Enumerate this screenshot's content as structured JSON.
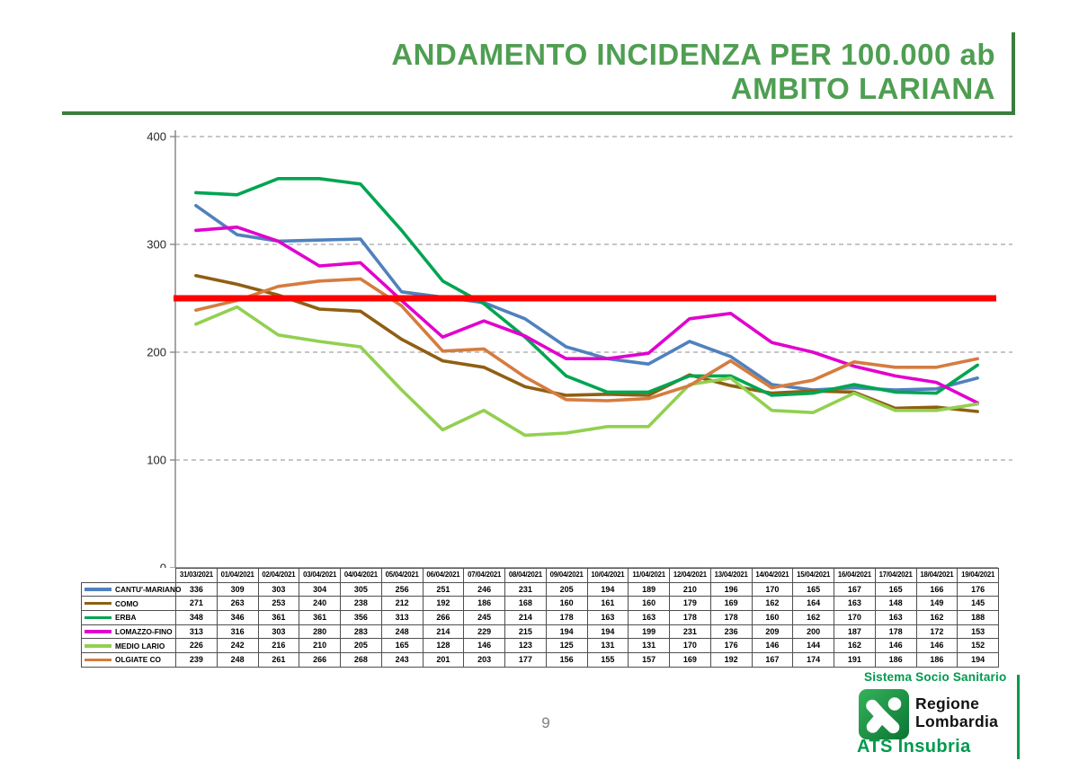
{
  "header": {
    "title_line1": "ANDAMENTO INCIDENZA PER 100.000 ab",
    "title_line2": "AMBITO LARIANA"
  },
  "chart_data": {
    "type": "line",
    "title": "ANDAMENTO INCIDENZA PER 100.000 ab - AMBITO LARIANA",
    "xlabel": "",
    "ylabel": "",
    "ylim": [
      0,
      400
    ],
    "y_ticks": [
      0,
      100,
      200,
      300,
      400
    ],
    "grid": "horizontal-dashed",
    "legend_position": "left-of-data-table",
    "threshold_line": {
      "value": 250,
      "color": "#FE0000"
    },
    "categories": [
      "31/03/2021",
      "01/04/2021",
      "02/04/2021",
      "03/04/2021",
      "04/04/2021",
      "05/04/2021",
      "06/04/2021",
      "07/04/2021",
      "08/04/2021",
      "09/04/2021",
      "10/04/2021",
      "11/04/2021",
      "12/04/2021",
      "13/04/2021",
      "14/04/2021",
      "15/04/2021",
      "16/04/2021",
      "17/04/2021",
      "18/04/2021",
      "19/04/2021"
    ],
    "series": [
      {
        "name": "CANTU'-MARIANO",
        "color": "#4F81BD",
        "values": [
          336,
          309,
          303,
          304,
          305,
          256,
          251,
          246,
          231,
          205,
          194,
          189,
          210,
          196,
          170,
          165,
          167,
          165,
          166,
          176
        ]
      },
      {
        "name": "COMO",
        "color": "#8F5F12",
        "values": [
          271,
          263,
          253,
          240,
          238,
          212,
          192,
          186,
          168,
          160,
          161,
          160,
          179,
          169,
          162,
          164,
          163,
          148,
          149,
          145
        ]
      },
      {
        "name": "ERBA",
        "color": "#00A551",
        "values": [
          348,
          346,
          361,
          361,
          356,
          313,
          266,
          245,
          214,
          178,
          163,
          163,
          178,
          178,
          160,
          162,
          170,
          163,
          162,
          188
        ]
      },
      {
        "name": "LOMAZZO-FINO",
        "color": "#E100CE",
        "values": [
          313,
          316,
          303,
          280,
          283,
          248,
          214,
          229,
          215,
          194,
          194,
          199,
          231,
          236,
          209,
          200,
          187,
          178,
          172,
          153
        ]
      },
      {
        "name": "MEDIO LARIO",
        "color": "#92D050",
        "values": [
          226,
          242,
          216,
          210,
          205,
          165,
          128,
          146,
          123,
          125,
          131,
          131,
          170,
          176,
          146,
          144,
          162,
          146,
          146,
          152
        ]
      },
      {
        "name": "OLGIATE CO",
        "color": "#D57C3F",
        "values": [
          239,
          248,
          261,
          266,
          268,
          243,
          201,
          203,
          177,
          156,
          155,
          157,
          169,
          192,
          167,
          174,
          191,
          186,
          186,
          194
        ]
      }
    ]
  },
  "footer": {
    "page_number": "9",
    "sistema": "Sistema Socio Sanitario",
    "regione_line1": "Regione",
    "regione_line2": "Lombardia",
    "ats": "ATS Insubria"
  },
  "colors": {
    "title_green": "#4F9E52",
    "rule_green": "#3A7D3E",
    "brand_green": "#009A4D",
    "threshold_red": "#FE0000",
    "grid_gray": "#A3A3A3",
    "axis_gray": "#808080",
    "table_border": "#4F4F4F"
  }
}
